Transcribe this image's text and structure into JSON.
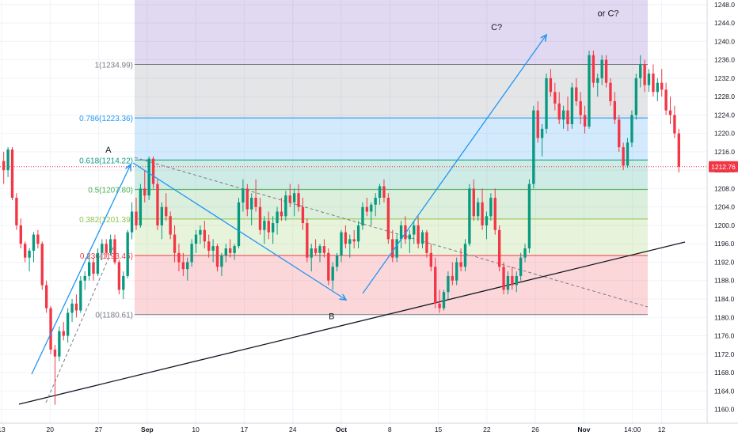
{
  "chart_data": {
    "type": "candlestick",
    "title": "",
    "xlabel": "",
    "ylabel": "",
    "ylim": [
      1157.0,
      1249.0
    ],
    "grid": true,
    "y_ticks": [
      1160,
      1164,
      1168,
      1172,
      1176,
      1180,
      1184,
      1188,
      1192,
      1196,
      1200,
      1204,
      1208,
      1212,
      1216,
      1220,
      1224,
      1228,
      1232,
      1236,
      1240,
      1244,
      1248
    ],
    "x_ticks": [
      {
        "i": 0,
        "label": "13"
      },
      {
        "i": 5,
        "label": "20"
      },
      {
        "i": 10,
        "label": "27"
      },
      {
        "i": 15,
        "label": "Sep"
      },
      {
        "i": 20,
        "label": "10"
      },
      {
        "i": 25,
        "label": "17"
      },
      {
        "i": 30,
        "label": "24"
      },
      {
        "i": 35,
        "label": "Oct"
      },
      {
        "i": 40,
        "label": "8"
      },
      {
        "i": 45,
        "label": "15"
      },
      {
        "i": 50,
        "label": "22"
      },
      {
        "i": 55,
        "label": "26"
      },
      {
        "i": 60,
        "label": "Nov"
      },
      {
        "i": 65,
        "label": "14:00"
      },
      {
        "i": 68,
        "label": "12"
      }
    ],
    "last_price": 1212.76,
    "last_price_label": "1212.76",
    "fib_levels": [
      {
        "ratio": 1.0,
        "price": 1234.99,
        "label": "1(1234.99)",
        "color": "#787b86",
        "fill": "rgba(120,123,134,0.2)"
      },
      {
        "ratio": 0.786,
        "price": 1223.36,
        "label": "0.786(1223.36)",
        "color": "#2196f3",
        "fill": "rgba(33,150,243,0.2)"
      },
      {
        "ratio": 0.618,
        "price": 1214.22,
        "label": "0.618(1214.22)",
        "color": "#089981",
        "fill": "rgba(8,153,129,0.2)"
      },
      {
        "ratio": 0.5,
        "price": 1207.8,
        "label": "0.5(1207.80)",
        "color": "#4caf50",
        "fill": "rgba(76,175,80,0.2)"
      },
      {
        "ratio": 0.382,
        "price": 1201.39,
        "label": "0.382(1201.39)",
        "color": "#8bc34a",
        "fill": "rgba(139,195,74,0.2)"
      },
      {
        "ratio": 0.236,
        "price": 1193.45,
        "label": "0.236(1193.45)",
        "color": "#f23645",
        "fill": "rgba(242,54,69,0.2)"
      },
      {
        "ratio": 0,
        "price": 1180.61,
        "label": "0(1180.61)",
        "color": "#787b86",
        "fill": null
      }
    ],
    "fib_extension_top": 1249.0,
    "fib_extension_fill": "rgba(103,58,183,0.2)",
    "wave_labels": [
      {
        "text": "A",
        "i": 11,
        "price": 1215.8
      },
      {
        "text": "B",
        "i": 34,
        "price": 1179.6
      },
      {
        "text": "C?",
        "i": 51,
        "price": 1242.5
      },
      {
        "text": "or C?",
        "i": 62.5,
        "price": 1245.5
      }
    ],
    "ohlc": [
      [
        1214.0,
        1216.0,
        1209.0,
        1212.0
      ],
      [
        1212.0,
        1217.0,
        1210.5,
        1216.5
      ],
      [
        1216.5,
        1217.0,
        1205.5,
        1206.0
      ],
      [
        1206.0,
        1207.0,
        1199.0,
        1200.0
      ],
      [
        1200.0,
        1201.5,
        1195.0,
        1196.0
      ],
      [
        1196.0,
        1196.5,
        1192.0,
        1193.0
      ],
      [
        1193.0,
        1195.0,
        1190.0,
        1194.5
      ],
      [
        1194.5,
        1198.5,
        1192.0,
        1198.0
      ],
      [
        1198.0,
        1199.0,
        1195.0,
        1196.0
      ],
      [
        1196.0,
        1196.5,
        1186.0,
        1187.0
      ],
      [
        1187.0,
        1188.0,
        1181.0,
        1182.0
      ],
      [
        1182.0,
        1182.5,
        1172.0,
        1173.0
      ],
      [
        1173.0,
        1174.0,
        1161.0,
        1171.5
      ],
      [
        1171.5,
        1178.0,
        1170.5,
        1177.0
      ],
      [
        1177.0,
        1179.0,
        1175.0,
        1176.0
      ],
      [
        1176.0,
        1182.0,
        1174.5,
        1181.0
      ],
      [
        1181.0,
        1184.0,
        1179.0,
        1183.0
      ],
      [
        1183.0,
        1185.0,
        1180.0,
        1181.5
      ],
      [
        1181.5,
        1189.0,
        1181.0,
        1188.0
      ],
      [
        1188.0,
        1190.0,
        1186.0,
        1189.0
      ],
      [
        1189.0,
        1193.5,
        1188.0,
        1192.0
      ],
      [
        1192.0,
        1193.0,
        1188.0,
        1189.5
      ],
      [
        1189.5,
        1195.0,
        1189.0,
        1194.0
      ],
      [
        1194.0,
        1197.0,
        1192.5,
        1196.0
      ],
      [
        1196.0,
        1197.0,
        1193.0,
        1194.0
      ],
      [
        1194.0,
        1198.0,
        1193.5,
        1197.0
      ],
      [
        1197.0,
        1198.0,
        1191.5,
        1192.0
      ],
      [
        1192.0,
        1192.5,
        1185.0,
        1186.0
      ],
      [
        1186.0,
        1190.0,
        1184.0,
        1189.0
      ],
      [
        1189.0,
        1199.0,
        1188.5,
        1198.5
      ],
      [
        1198.5,
        1205.0,
        1197.0,
        1203.0
      ],
      [
        1203.0,
        1206.0,
        1199.0,
        1200.0
      ],
      [
        1200.0,
        1209.0,
        1199.5,
        1208.0
      ],
      [
        1208.0,
        1212.0,
        1205.0,
        1206.5
      ],
      [
        1206.5,
        1215.0,
        1205.5,
        1214.5
      ],
      [
        1214.5,
        1215.0,
        1208.0,
        1209.0
      ],
      [
        1209.0,
        1210.0,
        1199.0,
        1200.0
      ],
      [
        1200.0,
        1205.0,
        1197.0,
        1204.0
      ],
      [
        1204.0,
        1207.0,
        1201.0,
        1202.0
      ],
      [
        1202.0,
        1203.0,
        1197.0,
        1198.0
      ],
      [
        1198.0,
        1200.0,
        1192.0,
        1194.0
      ],
      [
        1194.0,
        1196.0,
        1190.0,
        1192.0
      ],
      [
        1192.0,
        1194.0,
        1189.0,
        1190.5
      ],
      [
        1190.5,
        1193.0,
        1188.0,
        1192.0
      ],
      [
        1192.0,
        1197.0,
        1191.0,
        1196.0
      ],
      [
        1196.0,
        1199.0,
        1194.0,
        1198.0
      ],
      [
        1198.0,
        1200.0,
        1196.0,
        1199.0
      ],
      [
        1199.0,
        1201.0,
        1195.0,
        1196.5
      ],
      [
        1196.5,
        1198.0,
        1193.0,
        1194.5
      ],
      [
        1194.5,
        1197.0,
        1192.0,
        1195.5
      ],
      [
        1195.5,
        1196.0,
        1190.0,
        1191.0
      ],
      [
        1191.0,
        1194.0,
        1189.0,
        1193.5
      ],
      [
        1193.5,
        1196.0,
        1192.0,
        1195.0
      ],
      [
        1195.0,
        1197.0,
        1193.0,
        1194.0
      ],
      [
        1194.0,
        1196.0,
        1192.5,
        1195.5
      ],
      [
        1195.5,
        1206.0,
        1195.0,
        1205.0
      ],
      [
        1205.0,
        1210.0,
        1203.0,
        1208.0
      ],
      [
        1208.0,
        1209.0,
        1202.0,
        1203.5
      ],
      [
        1203.5,
        1207.0,
        1200.0,
        1206.0
      ],
      [
        1206.0,
        1210.0,
        1203.0,
        1204.0
      ],
      [
        1204.0,
        1206.0,
        1198.0,
        1199.0
      ],
      [
        1199.0,
        1202.0,
        1196.0,
        1201.0
      ],
      [
        1201.0,
        1203.0,
        1197.0,
        1198.5
      ],
      [
        1198.5,
        1202.0,
        1196.0,
        1200.5
      ],
      [
        1200.5,
        1204.0,
        1198.0,
        1203.0
      ],
      [
        1203.0,
        1206.0,
        1201.0,
        1202.0
      ],
      [
        1202.0,
        1207.5,
        1201.0,
        1206.5
      ],
      [
        1206.5,
        1209.0,
        1204.0,
        1205.0
      ],
      [
        1205.0,
        1208.0,
        1202.0,
        1207.0
      ],
      [
        1207.0,
        1209.0,
        1203.0,
        1204.0
      ],
      [
        1204.0,
        1206.0,
        1199.0,
        1200.5
      ],
      [
        1200.5,
        1201.5,
        1192.0,
        1193.0
      ],
      [
        1193.0,
        1196.0,
        1190.0,
        1195.0
      ],
      [
        1195.0,
        1197.0,
        1193.5,
        1194.0
      ],
      [
        1194.0,
        1196.0,
        1192.0,
        1195.5
      ],
      [
        1195.5,
        1197.0,
        1193.0,
        1194.0
      ],
      [
        1194.0,
        1195.0,
        1187.0,
        1188.0
      ],
      [
        1188.0,
        1192.0,
        1186.0,
        1191.0
      ],
      [
        1191.0,
        1194.0,
        1190.0,
        1193.5
      ],
      [
        1193.5,
        1199.0,
        1192.0,
        1198.5
      ],
      [
        1198.5,
        1200.0,
        1195.0,
        1196.0
      ],
      [
        1196.0,
        1198.0,
        1193.0,
        1197.0
      ],
      [
        1197.0,
        1199.0,
        1195.0,
        1196.5
      ],
      [
        1196.5,
        1201.0,
        1195.0,
        1200.0
      ],
      [
        1200.0,
        1205.0,
        1199.0,
        1204.0
      ],
      [
        1204.0,
        1206.0,
        1202.0,
        1203.0
      ],
      [
        1203.0,
        1205.0,
        1200.0,
        1204.5
      ],
      [
        1204.5,
        1207.0,
        1202.0,
        1206.0
      ],
      [
        1206.0,
        1209.0,
        1204.5,
        1208.5
      ],
      [
        1208.5,
        1210.0,
        1205.0,
        1206.0
      ],
      [
        1206.0,
        1207.0,
        1196.0,
        1197.0
      ],
      [
        1197.0,
        1199.0,
        1192.0,
        1193.0
      ],
      [
        1193.0,
        1198.0,
        1192.0,
        1197.0
      ],
      [
        1197.0,
        1201.0,
        1195.0,
        1200.0
      ],
      [
        1200.0,
        1202.0,
        1196.0,
        1197.0
      ],
      [
        1197.0,
        1199.0,
        1194.0,
        1198.0
      ],
      [
        1198.0,
        1201.0,
        1196.0,
        1200.0
      ],
      [
        1200.0,
        1202.0,
        1195.0,
        1196.0
      ],
      [
        1196.0,
        1199.0,
        1195.0,
        1198.5
      ],
      [
        1198.5,
        1199.0,
        1193.0,
        1194.0
      ],
      [
        1194.0,
        1196.0,
        1190.0,
        1191.0
      ],
      [
        1191.0,
        1193.0,
        1182.0,
        1183.0
      ],
      [
        1183.0,
        1186.0,
        1181.0,
        1182.0
      ],
      [
        1182.0,
        1186.0,
        1181.5,
        1185.5
      ],
      [
        1185.5,
        1190.0,
        1184.0,
        1189.0
      ],
      [
        1189.0,
        1192.0,
        1187.0,
        1188.0
      ],
      [
        1188.0,
        1193.0,
        1187.0,
        1192.0
      ],
      [
        1192.0,
        1195.0,
        1190.0,
        1191.0
      ],
      [
        1191.0,
        1197.0,
        1190.0,
        1196.0
      ],
      [
        1196.0,
        1209.0,
        1195.5,
        1208.0
      ],
      [
        1208.0,
        1210.0,
        1201.0,
        1202.0
      ],
      [
        1202.0,
        1206.0,
        1201.0,
        1205.0
      ],
      [
        1205.0,
        1208.0,
        1199.0,
        1200.0
      ],
      [
        1200.0,
        1203.0,
        1197.0,
        1202.0
      ],
      [
        1202.0,
        1207.0,
        1201.0,
        1206.0
      ],
      [
        1206.0,
        1208.0,
        1198.0,
        1199.0
      ],
      [
        1199.0,
        1200.0,
        1190.0,
        1191.0
      ],
      [
        1191.0,
        1192.0,
        1185.0,
        1186.0
      ],
      [
        1186.0,
        1190.0,
        1185.0,
        1189.0
      ],
      [
        1189.0,
        1191.0,
        1186.0,
        1187.0
      ],
      [
        1187.0,
        1190.0,
        1185.5,
        1189.0
      ],
      [
        1189.0,
        1194.0,
        1188.0,
        1193.0
      ],
      [
        1193.0,
        1196.0,
        1192.0,
        1195.0
      ],
      [
        1195.0,
        1210.0,
        1194.0,
        1209.0
      ],
      [
        1209.0,
        1226.0,
        1208.0,
        1225.0
      ],
      [
        1225.0,
        1227.0,
        1218.0,
        1219.0
      ],
      [
        1219.0,
        1222.0,
        1215.0,
        1221.0
      ],
      [
        1221.0,
        1233.0,
        1220.0,
        1232.0
      ],
      [
        1232.0,
        1234.0,
        1228.0,
        1229.0
      ],
      [
        1229.0,
        1231.0,
        1225.0,
        1226.5
      ],
      [
        1226.5,
        1229.0,
        1222.0,
        1223.0
      ],
      [
        1223.0,
        1226.0,
        1221.0,
        1225.0
      ],
      [
        1225.0,
        1228.0,
        1220.5,
        1222.0
      ],
      [
        1222.0,
        1231.0,
        1221.0,
        1230.0
      ],
      [
        1230.0,
        1232.0,
        1226.0,
        1227.0
      ],
      [
        1227.0,
        1229.0,
        1222.0,
        1224.0
      ],
      [
        1224.0,
        1226.0,
        1220.0,
        1221.5
      ],
      [
        1221.5,
        1238.0,
        1221.0,
        1237.0
      ],
      [
        1237.0,
        1238.0,
        1230.0,
        1231.0
      ],
      [
        1231.0,
        1233.0,
        1228.0,
        1232.0
      ],
      [
        1232.0,
        1237.0,
        1230.5,
        1236.0
      ],
      [
        1236.0,
        1237.0,
        1230.0,
        1231.0
      ],
      [
        1231.0,
        1232.0,
        1226.0,
        1227.0
      ],
      [
        1227.0,
        1229.0,
        1222.0,
        1223.0
      ],
      [
        1223.0,
        1224.0,
        1216.0,
        1217.0
      ],
      [
        1217.0,
        1218.0,
        1212.0,
        1213.0
      ],
      [
        1213.0,
        1219.0,
        1212.5,
        1218.0
      ],
      [
        1218.0,
        1225.0,
        1217.0,
        1224.0
      ],
      [
        1224.0,
        1233.0,
        1223.0,
        1232.0
      ],
      [
        1232.0,
        1237.0,
        1230.0,
        1235.0
      ],
      [
        1235.0,
        1236.0,
        1229.0,
        1230.5
      ],
      [
        1230.5,
        1234.0,
        1229.0,
        1233.0
      ],
      [
        1233.0,
        1235.0,
        1228.0,
        1229.0
      ],
      [
        1229.0,
        1232.0,
        1227.0,
        1231.0
      ],
      [
        1231.0,
        1234.0,
        1228.0,
        1229.5
      ],
      [
        1229.5,
        1231.0,
        1224.0,
        1225.0
      ],
      [
        1225.0,
        1228.0,
        1222.0,
        1224.0
      ],
      [
        1224.0,
        1226.0,
        1219.0,
        1220.0
      ],
      [
        1220.0,
        1221.0,
        1211.5,
        1212.76
      ]
    ]
  }
}
